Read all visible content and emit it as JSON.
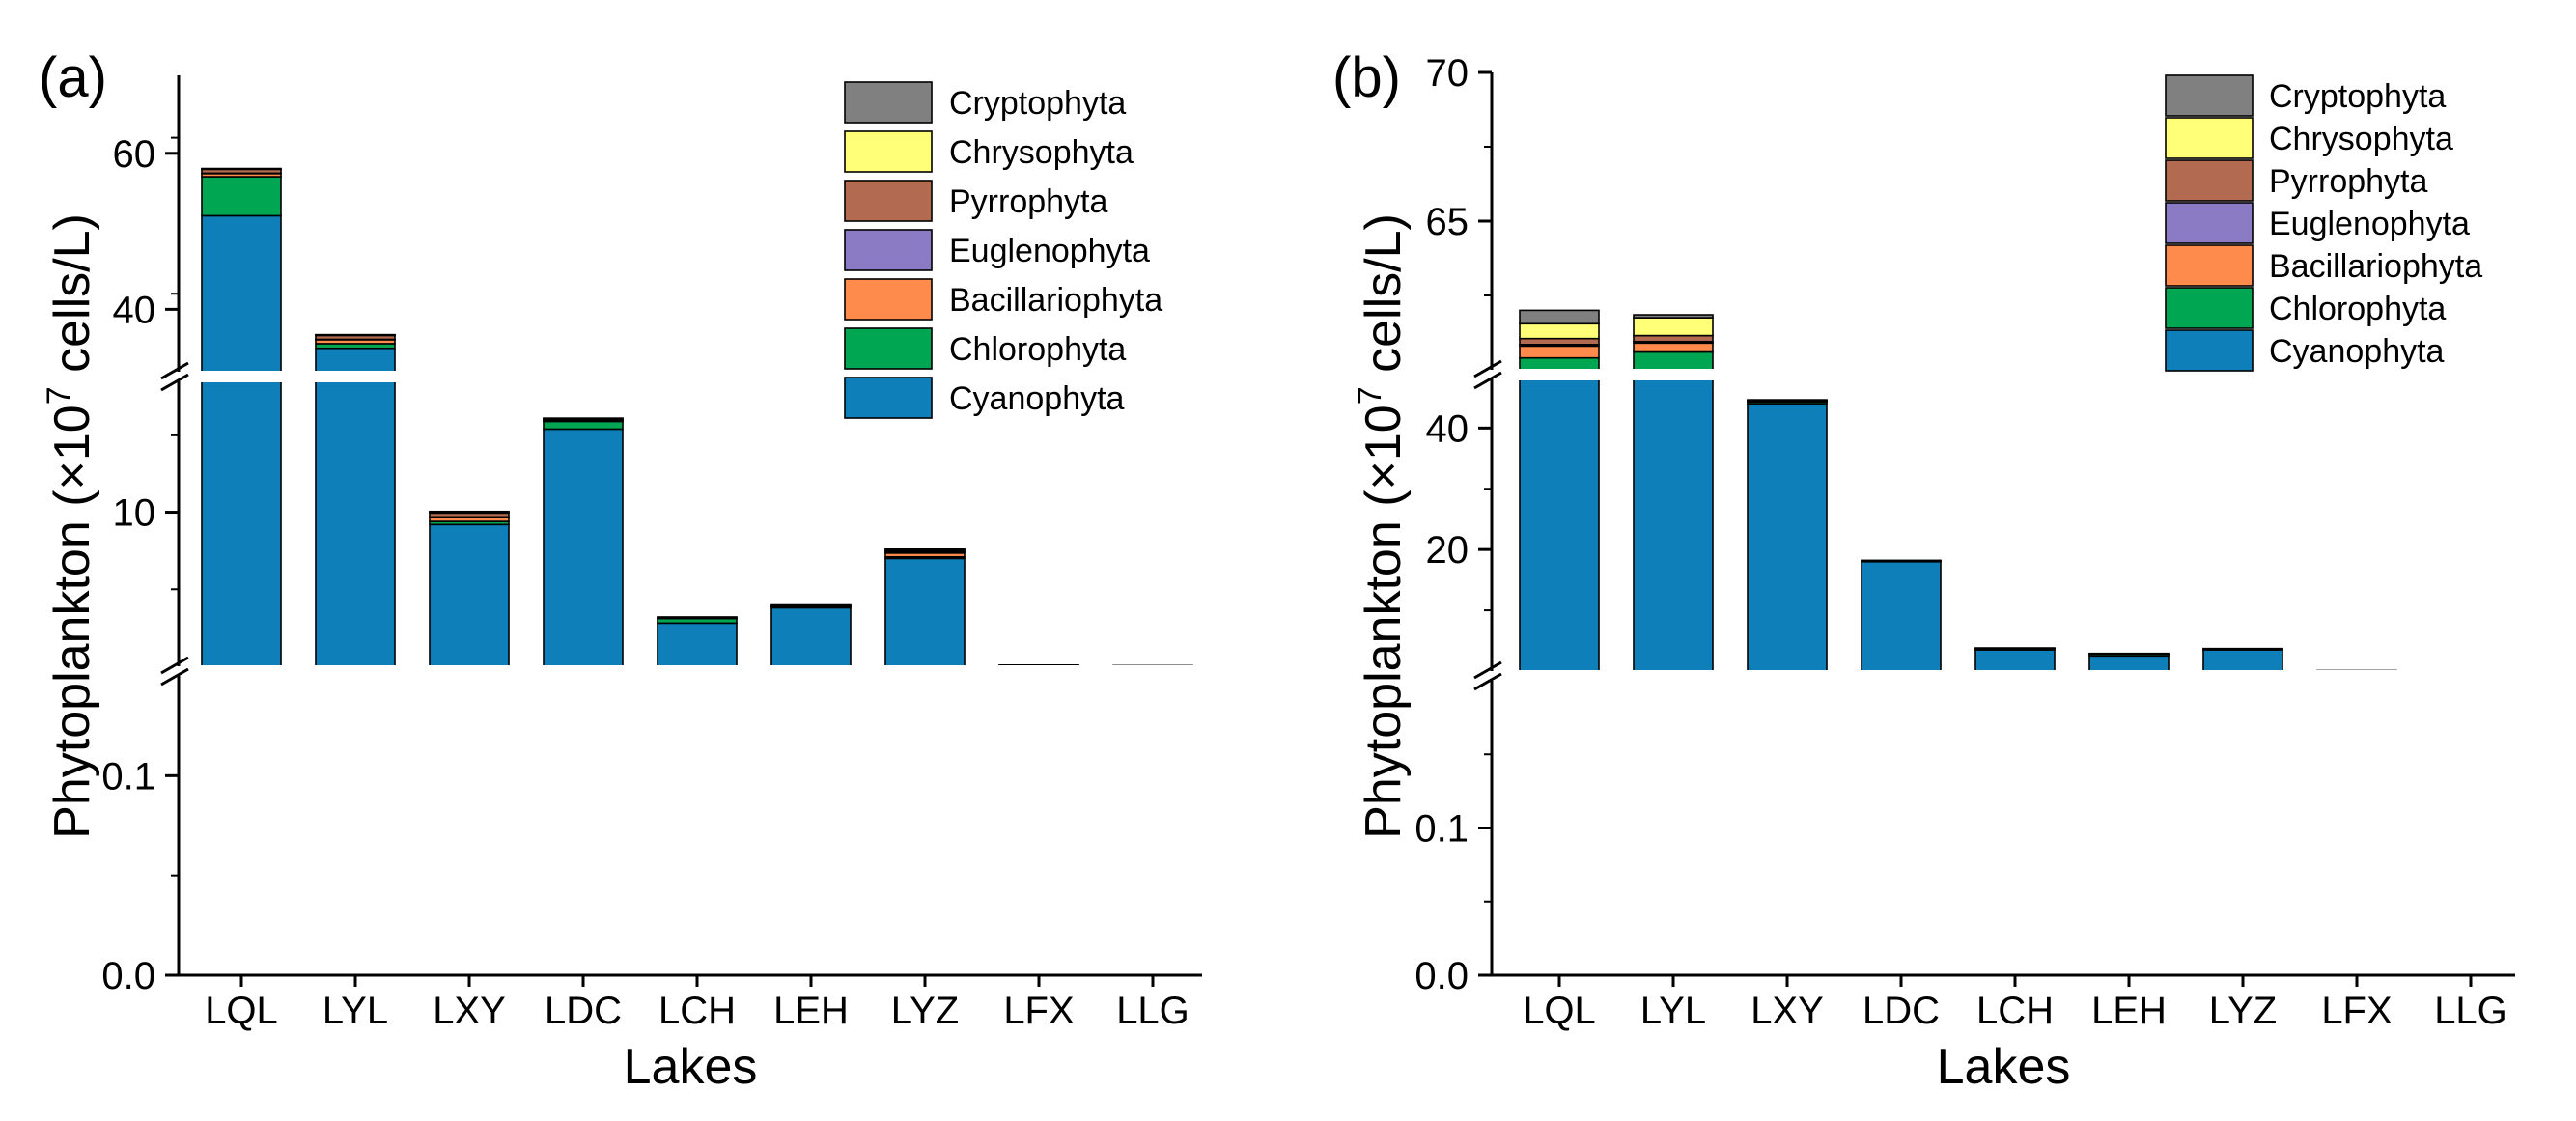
{
  "figure": {
    "panels": [
      {
        "id": "a",
        "label": "(a)",
        "ylabel": "Phytoplankton (×10<sup>7</sup> cells/L)",
        "ylabel_plain": "Phytoplankton (×10",
        "ylabel_sup": "7",
        "ylabel_tail": " cells/L)",
        "xlabel": "Lakes"
      },
      {
        "id": "b",
        "label": "(b)",
        "ylabel_plain": "Phytoplankton (×10",
        "ylabel_sup": "7",
        "ylabel_tail": " cells/L)",
        "xlabel": "Lakes"
      }
    ]
  },
  "chart_data": [
    {
      "type": "bar",
      "stacked": true,
      "panel": "(a)",
      "title": "",
      "xlabel": "Lakes",
      "ylabel": "Phytoplankton (×10^7 cells/L)",
      "categories": [
        "LQL",
        "LYL",
        "LXY",
        "LDC",
        "LCH",
        "LEH",
        "LYZ",
        "LFX",
        "LLG"
      ],
      "broken_axis": [
        {
          "range": [
            0,
            0.15
          ],
          "ticks": [
            0.0,
            0.1
          ],
          "tick_labels": [
            "0.0",
            "0.1"
          ]
        },
        {
          "range": [
            0,
            18.5
          ],
          "ticks": [
            10
          ],
          "tick_labels": [
            "10"
          ]
        },
        {
          "range": [
            32,
            70
          ],
          "ticks": [
            40,
            60
          ],
          "tick_labels": [
            "40",
            "60"
          ]
        }
      ],
      "legend": [
        "Cryptophyta",
        "Chrysophyta",
        "Pyrrophyta",
        "Euglenophyta",
        "Bacillariophyta",
        "Chlorophyta",
        "Cyanophyta"
      ],
      "legend_position": "top-right",
      "colors": {
        "Cyanophyta": "#0f7fb9",
        "Chlorophyta": "#00a651",
        "Bacillariophyta": "#fe8a4b",
        "Euglenophyta": "#8a7bc4",
        "Pyrrophyta": "#b26b50",
        "Chrysophyta": "#ffff78",
        "Cryptophyta": "#808080"
      },
      "series": [
        {
          "name": "Cyanophyta",
          "values": [
            52.0,
            35.0,
            9.2,
            15.4,
            2.8,
            3.8,
            7.0,
            0.043,
            0.002
          ]
        },
        {
          "name": "Chlorophyta",
          "values": [
            5.0,
            0.6,
            0.2,
            0.5,
            0.3,
            0.08,
            0.1,
            0.032,
            0.001
          ]
        },
        {
          "name": "Bacillariophyta",
          "values": [
            0.4,
            0.5,
            0.25,
            0.05,
            0.05,
            0.04,
            0.25,
            0.015,
            0.037
          ]
        },
        {
          "name": "Euglenophyta",
          "values": [
            0.05,
            0.05,
            0.05,
            0.02,
            0.01,
            0.01,
            0.05,
            0.002,
            0.0005
          ]
        },
        {
          "name": "Pyrrophyta",
          "values": [
            0.5,
            0.5,
            0.25,
            0.1,
            0.04,
            0.05,
            0.1,
            0.001,
            0.0005
          ]
        },
        {
          "name": "Chrysophyta",
          "values": [
            0.05,
            0.05,
            0.05,
            0.02,
            0.01,
            0.01,
            0.05,
            0.003,
            0.012
          ]
        },
        {
          "name": "Cryptophyta",
          "values": [
            0.05,
            0.05,
            0.05,
            0.02,
            0.01,
            0.01,
            0.05,
            0.004,
            0.001
          ]
        }
      ]
    },
    {
      "type": "bar",
      "stacked": true,
      "panel": "(b)",
      "title": "",
      "xlabel": "Lakes",
      "ylabel": "Phytoplankton (×10^7 cells/L)",
      "categories": [
        "LQL",
        "LYL",
        "LXY",
        "LDC",
        "LCH",
        "LEH",
        "LYZ",
        "LFX",
        "LLG"
      ],
      "broken_axis": [
        {
          "range": [
            0,
            0.2
          ],
          "ticks": [
            0.0,
            0.1
          ],
          "tick_labels": [
            "0.0",
            "0.1"
          ]
        },
        {
          "range": [
            0,
            48
          ],
          "ticks": [
            20,
            40
          ],
          "tick_labels": [
            "20",
            "40"
          ]
        },
        {
          "range": [
            60,
            70
          ],
          "ticks": [
            65,
            70
          ],
          "tick_labels": [
            "65",
            "70"
          ]
        }
      ],
      "legend": [
        "Cryptophyta",
        "Chrysophyta",
        "Pyrrophyta",
        "Euglenophyta",
        "Bacillariophyta",
        "Chlorophyta",
        "Cyanophyta"
      ],
      "legend_position": "top-right",
      "colors": {
        "Cyanophyta": "#0f7fb9",
        "Chlorophyta": "#00a651",
        "Bacillariophyta": "#fe8a4b",
        "Euglenophyta": "#8a7bc4",
        "Pyrrophyta": "#b26b50",
        "Chrysophyta": "#ffff78",
        "Cryptophyta": "#808080"
      },
      "series": [
        {
          "name": "Cyanophyta",
          "values": [
            59.2,
            59.8,
            44.0,
            18.0,
            3.5,
            2.5,
            3.5,
            0.09,
            0.01
          ]
        },
        {
          "name": "Chlorophyta",
          "values": [
            1.2,
            0.8,
            0.3,
            0.1,
            0.2,
            0.3,
            0.1,
            0.047,
            0.021
          ]
        },
        {
          "name": "Bacillariophyta",
          "values": [
            0.4,
            0.3,
            0.1,
            0.05,
            0.05,
            0.05,
            0.05,
            0.017,
            0.012
          ]
        },
        {
          "name": "Euglenophyta",
          "values": [
            0.05,
            0.05,
            0.05,
            0.02,
            0.01,
            0.01,
            0.01,
            0.0005,
            0.0005
          ]
        },
        {
          "name": "Pyrrophyta",
          "values": [
            0.2,
            0.2,
            0.1,
            0.05,
            0.05,
            0.05,
            0.05,
            0.0005,
            0.0005
          ]
        },
        {
          "name": "Chrysophyta",
          "values": [
            0.5,
            0.6,
            0.05,
            0.02,
            0.02,
            0.02,
            0.02,
            0.0005,
            0.004
          ]
        },
        {
          "name": "Cryptophyta",
          "values": [
            0.45,
            0.1,
            0.05,
            0.02,
            0.02,
            0.02,
            0.02,
            0.0005,
            0.001
          ]
        }
      ]
    }
  ]
}
